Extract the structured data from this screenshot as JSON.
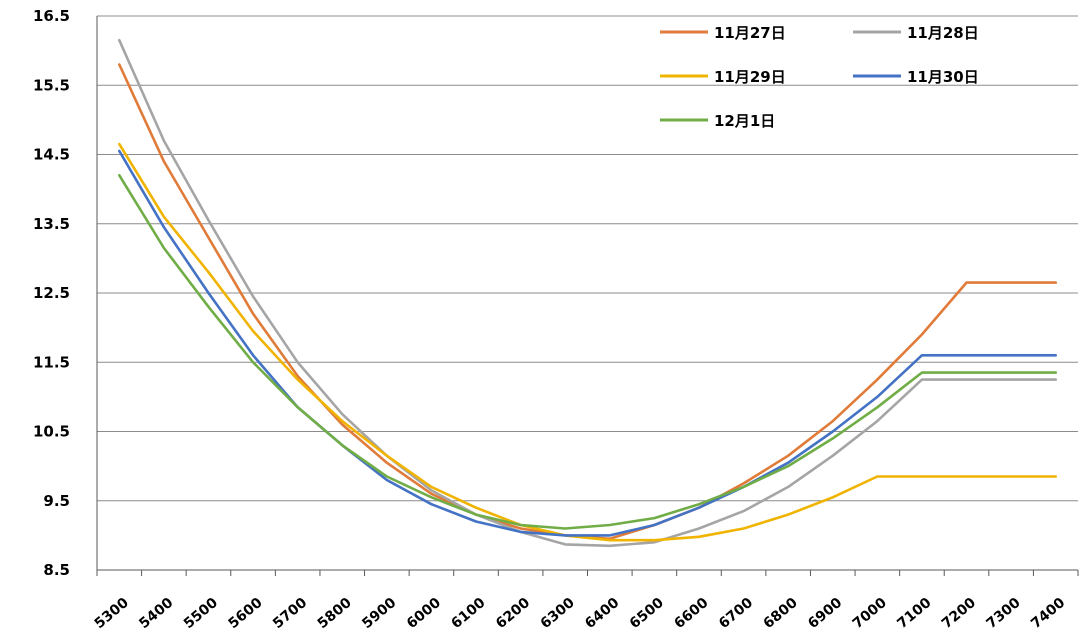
{
  "chart_data": {
    "type": "line",
    "title": "",
    "xlabel": "",
    "ylabel": "",
    "categories": [
      "5300",
      "5400",
      "5500",
      "5600",
      "5700",
      "5800",
      "5900",
      "6000",
      "6100",
      "6200",
      "6300",
      "6400",
      "6500",
      "6600",
      "6700",
      "6800",
      "6900",
      "7000",
      "7100",
      "7200",
      "7300",
      "7400"
    ],
    "yticks": [
      "8.5",
      "9.5",
      "10.5",
      "11.5",
      "12.5",
      "13.5",
      "14.5",
      "15.5",
      "16.5"
    ],
    "ylim": [
      8.5,
      16.5
    ],
    "grid": true,
    "legend_position": "top-right",
    "series": [
      {
        "name": "11月27日",
        "color": "#e07b39",
        "values": [
          15.8,
          14.4,
          13.3,
          12.2,
          11.3,
          10.6,
          10.05,
          9.6,
          9.3,
          9.1,
          9.0,
          8.95,
          9.15,
          9.4,
          9.75,
          10.15,
          10.65,
          11.25,
          11.9,
          12.65,
          12.65,
          12.65
        ]
      },
      {
        "name": "11月28日",
        "color": "#a5a5a5",
        "values": [
          16.15,
          14.7,
          13.55,
          12.45,
          11.5,
          10.75,
          10.15,
          9.65,
          9.3,
          9.05,
          8.87,
          8.85,
          8.9,
          9.1,
          9.35,
          9.7,
          10.15,
          10.65,
          11.25,
          11.25,
          11.25,
          11.25
        ]
      },
      {
        "name": "11月29日",
        "color": "#f0b400",
        "values": [
          14.65,
          13.6,
          12.8,
          11.95,
          11.25,
          10.65,
          10.15,
          9.7,
          9.4,
          9.15,
          9.0,
          8.93,
          8.93,
          8.98,
          9.1,
          9.3,
          9.55,
          9.85,
          9.85,
          9.85,
          9.85,
          9.85
        ]
      },
      {
        "name": "11月30日",
        "color": "#4472c4",
        "values": [
          14.55,
          13.45,
          12.5,
          11.6,
          10.85,
          10.3,
          9.8,
          9.45,
          9.2,
          9.05,
          9.0,
          9.0,
          9.15,
          9.4,
          9.7,
          10.05,
          10.5,
          11.0,
          11.6,
          11.6,
          11.6,
          11.6
        ]
      },
      {
        "name": "12月1日",
        "color": "#70ad47",
        "values": [
          14.2,
          13.15,
          12.3,
          11.5,
          10.85,
          10.3,
          9.85,
          9.55,
          9.3,
          9.15,
          9.1,
          9.15,
          9.25,
          9.45,
          9.7,
          10.0,
          10.4,
          10.85,
          11.35,
          11.35,
          11.35,
          11.35
        ]
      }
    ]
  }
}
